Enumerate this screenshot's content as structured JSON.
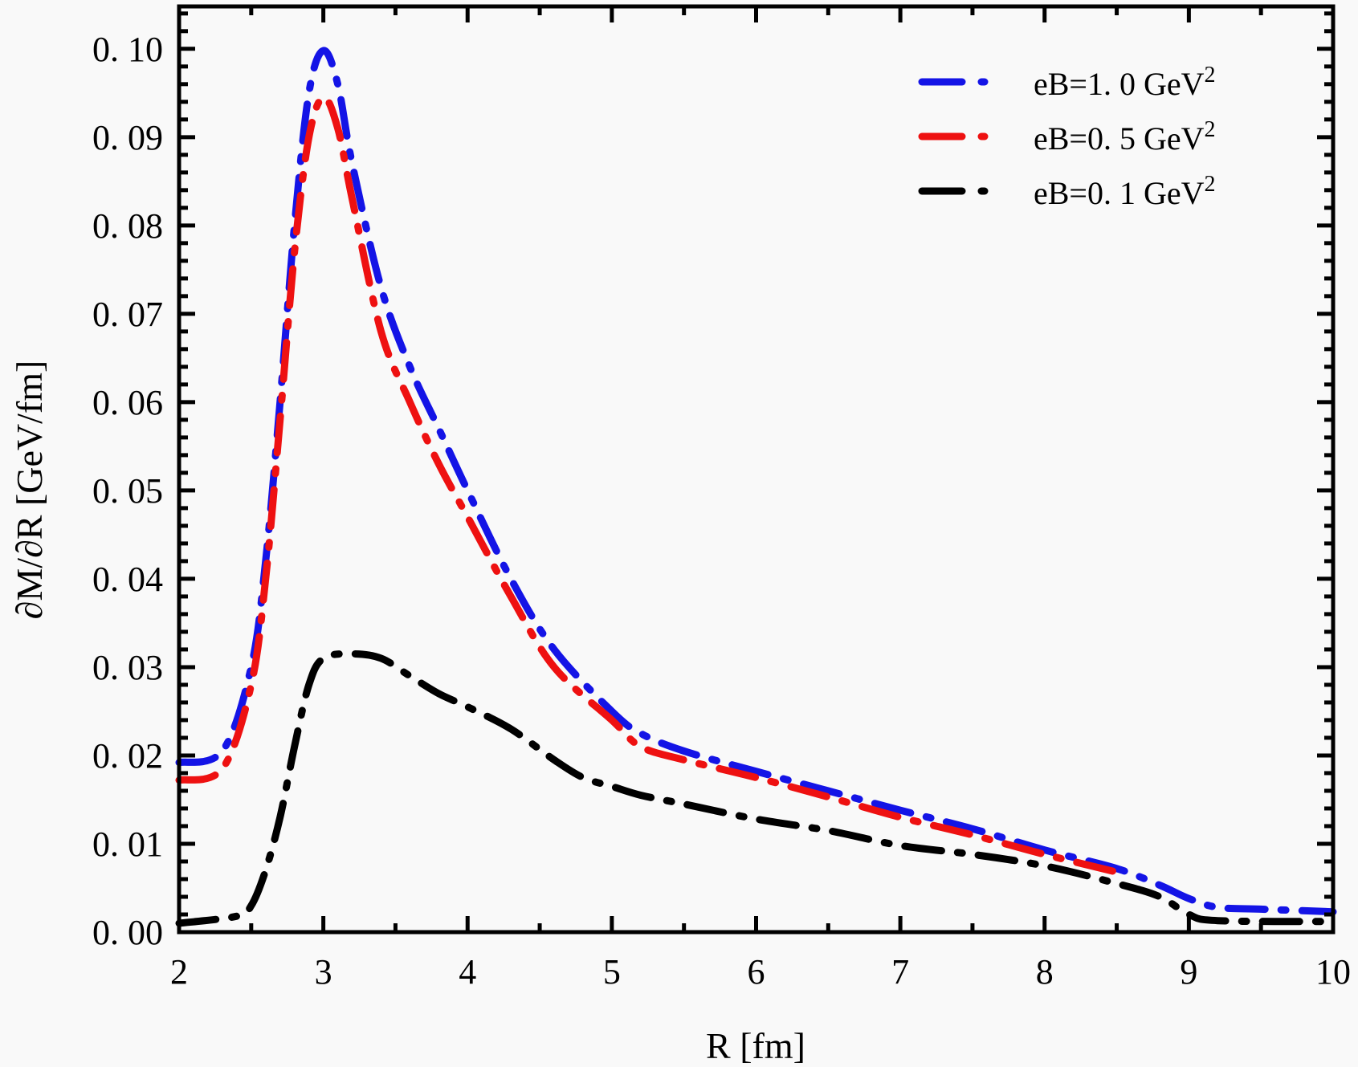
{
  "chart_data": {
    "type": "line",
    "title": "",
    "xlabel": "R [fm]",
    "ylabel": "∂M/∂R [GeV/fm]",
    "xlim": [
      2,
      10
    ],
    "ylim": [
      0,
      0.1048
    ],
    "xticks": [
      2,
      3,
      4,
      5,
      6,
      7,
      8,
      9,
      10
    ],
    "xtick_labels": [
      "2",
      "3",
      "4",
      "5",
      "6",
      "7",
      "8",
      "9",
      "10"
    ],
    "yticks": [
      0,
      0.01,
      0.02,
      0.03,
      0.04,
      0.05,
      0.06,
      0.07,
      0.08,
      0.09,
      0.1
    ],
    "ytick_labels": [
      "0. 00",
      "0. 01",
      "0. 02",
      "0. 03",
      "0. 04",
      "0. 05",
      "0. 06",
      "0. 07",
      "0. 08",
      "0. 09",
      "0. 10"
    ],
    "grid": false,
    "legend_position": "top-right",
    "line_style": "dash-dot",
    "series": [
      {
        "name": "eB=1.0 GeV²",
        "label_main": "eB=1. 0 GeV",
        "label_sup": "2",
        "color": "#1414e6",
        "x": [
          2,
          2.3,
          2.5,
          2.6,
          2.7,
          2.8,
          2.9,
          3.0,
          3.1,
          3.2,
          3.4,
          3.6,
          3.8,
          4.0,
          4.3,
          4.6,
          5.0,
          5.2,
          5.5,
          6.0,
          6.5,
          7.0,
          7.5,
          8.0,
          8.5,
          8.8,
          9.0,
          9.2,
          9.5,
          10
        ],
        "y": [
          0.0192,
          0.0205,
          0.03,
          0.042,
          0.06,
          0.08,
          0.095,
          0.0998,
          0.096,
          0.087,
          0.073,
          0.064,
          0.057,
          0.05,
          0.04,
          0.032,
          0.025,
          0.0225,
          0.0205,
          0.0182,
          0.016,
          0.0138,
          0.0117,
          0.0093,
          0.0072,
          0.0053,
          0.0038,
          0.0028,
          0.0026,
          0.0023
        ]
      },
      {
        "name": "eB=0.5 GeV²",
        "label_main": "eB=0. 5 GeV",
        "label_sup": "2",
        "color": "#ee1111",
        "x": [
          2,
          2.3,
          2.5,
          2.6,
          2.7,
          2.8,
          2.9,
          3.0,
          3.1,
          3.2,
          3.4,
          3.6,
          3.8,
          4.0,
          4.3,
          4.6,
          5.0,
          5.2,
          5.5,
          6.0,
          6.5,
          7.0,
          7.5,
          8.0,
          8.5
        ],
        "y": [
          0.0172,
          0.0185,
          0.028,
          0.04,
          0.058,
          0.077,
          0.09,
          0.0945,
          0.091,
          0.083,
          0.068,
          0.06,
          0.053,
          0.047,
          0.038,
          0.03,
          0.024,
          0.021,
          0.0195,
          0.0175,
          0.0153,
          0.013,
          0.011,
          0.0088,
          0.0068
        ]
      },
      {
        "name": "eB=0.1 GeV²",
        "label_main": "eB=0. 1 GeV",
        "label_sup": "2",
        "color": "#000000",
        "x": [
          2,
          2.4,
          2.5,
          2.6,
          2.7,
          2.8,
          2.9,
          3.0,
          3.2,
          3.4,
          3.6,
          3.8,
          4.0,
          4.3,
          4.6,
          4.8,
          5.0,
          5.2,
          5.5,
          6.0,
          6.5,
          7.0,
          7.5,
          8.0,
          8.5,
          8.8,
          9.0,
          9.2,
          10
        ],
        "y": [
          0.001,
          0.0018,
          0.003,
          0.007,
          0.013,
          0.021,
          0.028,
          0.031,
          0.0315,
          0.031,
          0.029,
          0.027,
          0.0255,
          0.023,
          0.0195,
          0.0175,
          0.0165,
          0.0155,
          0.0145,
          0.0128,
          0.0115,
          0.0098,
          0.0088,
          0.0075,
          0.0055,
          0.004,
          0.002,
          0.0013,
          0.0012
        ]
      }
    ]
  }
}
